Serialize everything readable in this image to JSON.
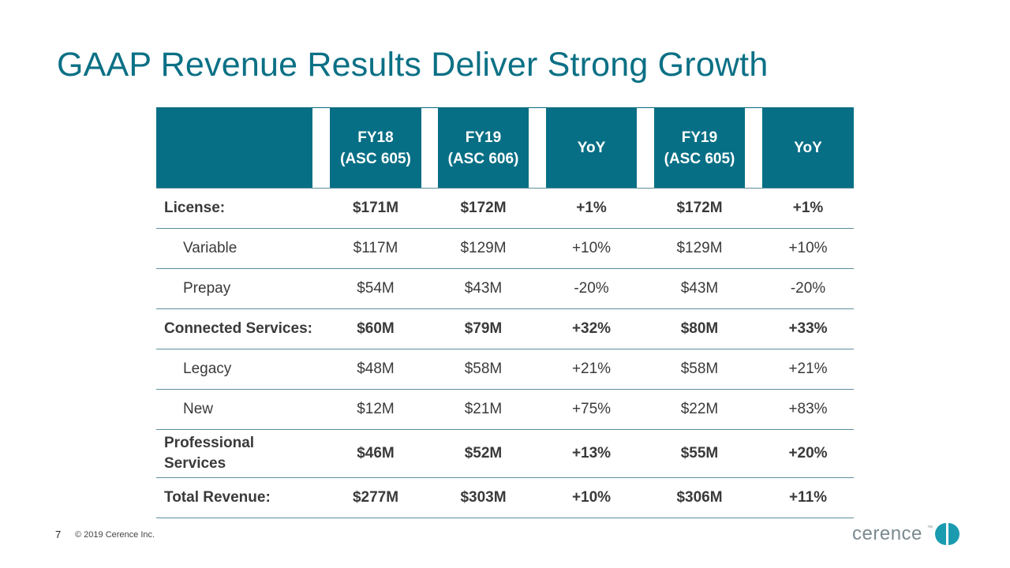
{
  "title": "GAAP Revenue Results Deliver Strong Growth",
  "table": {
    "headers": [
      {
        "line1": "FY18",
        "line2": "(ASC 605)"
      },
      {
        "line1": "FY19",
        "line2": "(ASC 606)"
      },
      {
        "line1": "YoY",
        "line2": ""
      },
      {
        "line1": "FY19",
        "line2": "(ASC 605)"
      },
      {
        "line1": "YoY",
        "line2": ""
      }
    ],
    "rows": [
      {
        "label": "License:",
        "bold": true,
        "indent": false,
        "values": [
          "$171M",
          "$172M",
          "+1%",
          "$172M",
          "+1%"
        ]
      },
      {
        "label": "Variable",
        "bold": false,
        "indent": true,
        "values": [
          "$117M",
          "$129M",
          "+10%",
          "$129M",
          "+10%"
        ]
      },
      {
        "label": "Prepay",
        "bold": false,
        "indent": true,
        "values": [
          "$54M",
          "$43M",
          "-20%",
          "$43M",
          "-20%"
        ]
      },
      {
        "label": "Connected Services:",
        "bold": true,
        "indent": false,
        "values": [
          "$60M",
          "$79M",
          "+32%",
          "$80M",
          "+33%"
        ]
      },
      {
        "label": "Legacy",
        "bold": false,
        "indent": true,
        "values": [
          "$48M",
          "$58M",
          "+21%",
          "$58M",
          "+21%"
        ]
      },
      {
        "label": "New",
        "bold": false,
        "indent": true,
        "values": [
          "$12M",
          "$21M",
          "+75%",
          "$22M",
          "+83%"
        ]
      },
      {
        "label": "Professional Services",
        "bold": true,
        "indent": false,
        "values": [
          "$46M",
          "$52M",
          "+13%",
          "$55M",
          "+20%"
        ]
      },
      {
        "label": "Total Revenue:",
        "bold": true,
        "indent": false,
        "values": [
          "$277M",
          "$303M",
          "+10%",
          "$306M",
          "+11%"
        ]
      }
    ]
  },
  "footer": {
    "page_number": "7",
    "copyright": "© 2019 Cerence Inc."
  },
  "logo": {
    "text": "cerence",
    "trademark": "™",
    "text_color": "#7a8a90",
    "mark_color": "#1a9bb0"
  },
  "colors": {
    "accent": "#0b7085",
    "header_bg": "#076f85"
  }
}
